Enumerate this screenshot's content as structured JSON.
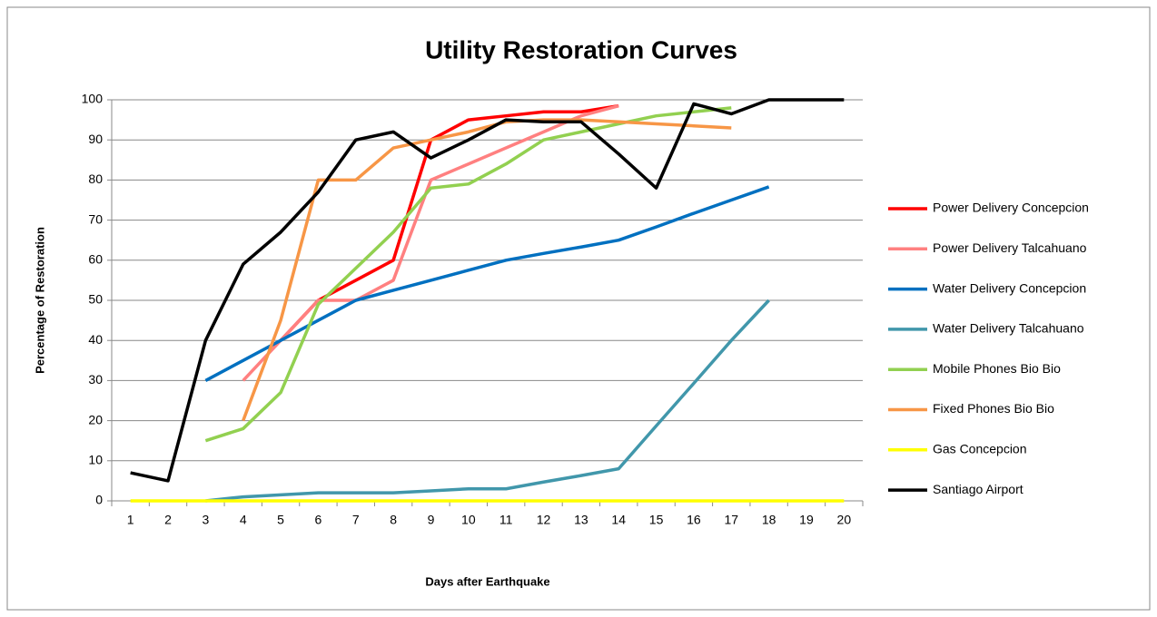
{
  "chart_data": {
    "type": "line",
    "title": "Utility Restoration Curves",
    "x_label": "Days after Earthquake",
    "y_label": "Percentage of Restoration",
    "categories": [
      1,
      2,
      3,
      4,
      5,
      6,
      7,
      8,
      9,
      10,
      11,
      12,
      13,
      14,
      15,
      16,
      17,
      18,
      19,
      20
    ],
    "ylim": [
      0,
      100
    ],
    "yticks": [
      0,
      10,
      20,
      30,
      40,
      50,
      60,
      70,
      80,
      90,
      100
    ],
    "grid": true,
    "legend": "right",
    "series": [
      {
        "name": "Power Delivery Concepcion",
        "color": "#ff0000",
        "values": [
          null,
          null,
          null,
          null,
          40,
          50,
          55,
          60,
          90,
          95,
          96,
          97,
          97,
          98.5,
          null,
          null,
          null,
          null,
          null,
          null
        ]
      },
      {
        "name": "Power Delivery Talcahuano",
        "color": "#ff8080",
        "values": [
          null,
          null,
          null,
          30,
          40,
          50,
          50,
          55,
          80,
          84,
          88,
          92,
          96,
          98.5,
          null,
          null,
          null,
          null,
          null,
          null
        ]
      },
      {
        "name": "Water Delivery Concepcion",
        "color": "#0070c0",
        "values": [
          null,
          null,
          30,
          35,
          40,
          45,
          50,
          52.5,
          55,
          57.5,
          60,
          61.7,
          63.3,
          65,
          68.3,
          71.7,
          75,
          78.3,
          null,
          null
        ]
      },
      {
        "name": "Water Delivery Talcahuano",
        "color": "#4197ab",
        "values": [
          null,
          null,
          0,
          1,
          1.5,
          2,
          2,
          2,
          2.5,
          3,
          3,
          4.7,
          6.3,
          8,
          18.7,
          29.3,
          40,
          50,
          null,
          null
        ]
      },
      {
        "name": "Mobile Phones Bio Bio",
        "color": "#92d050",
        "values": [
          null,
          null,
          15,
          18,
          27,
          49,
          58,
          67,
          78,
          79,
          84,
          90,
          92,
          94,
          96,
          97,
          98,
          null,
          null,
          null
        ]
      },
      {
        "name": "Fixed Phones Bio Bio",
        "color": "#f79646",
        "values": [
          null,
          null,
          null,
          20,
          45,
          80,
          80,
          88,
          90,
          92,
          94.5,
          95,
          95,
          94.5,
          94,
          93.5,
          93,
          null,
          null,
          null
        ]
      },
      {
        "name": "Gas Concepcion",
        "color": "#ffff00",
        "values": [
          0,
          0,
          0,
          0,
          0,
          0,
          0,
          0,
          0,
          0,
          0,
          0,
          0,
          0,
          0,
          0,
          0,
          0,
          0,
          0
        ]
      },
      {
        "name": "Santiago Airport",
        "color": "#000000",
        "values": [
          7,
          5,
          40,
          59,
          67,
          77,
          90,
          92,
          85.5,
          90,
          95,
          94.5,
          94.5,
          86.5,
          78,
          99,
          96.5,
          100,
          100,
          100
        ]
      }
    ]
  }
}
